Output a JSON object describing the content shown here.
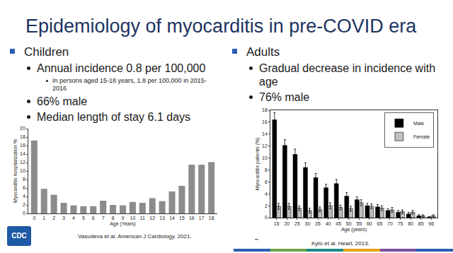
{
  "slide": {
    "title": "Epidemiology of myocarditis in pre-COVID era",
    "columns": [
      {
        "heading": "Children",
        "bullets": [
          {
            "text": "Annual incidence 0.8 per 100,000",
            "sub": [
              "In persons aged 15-18 years, 1.8 per 100,000 in 2015-2016"
            ]
          },
          {
            "text": "66% male"
          },
          {
            "text": "Median length of stay 6.1 days"
          }
        ]
      },
      {
        "heading": "Adults",
        "bullets": [
          {
            "text": "Gradual decrease in incidence with age"
          },
          {
            "text": "76% male"
          }
        ]
      }
    ],
    "citations": [
      "Vasudeva et al. American J Cardiology. 2021.",
      "Kyto et al. Heart. 2013."
    ],
    "logo": "CDC"
  },
  "chart_data": [
    {
      "type": "bar",
      "x_label": "Age (Years)",
      "y_label": "Myocarditis hospitalization %",
      "categories": [
        "0",
        "1",
        "2",
        "3",
        "4",
        "5",
        "6",
        "7",
        "8",
        "9",
        "10",
        "11",
        "12",
        "13",
        "14",
        "15",
        "16",
        "17",
        "18"
      ],
      "values": [
        17.2,
        5.8,
        4.4,
        2.5,
        1.9,
        1.7,
        1.7,
        3.0,
        2.0,
        1.9,
        2.7,
        2.5,
        3.6,
        2.9,
        5.2,
        6.5,
        11.5,
        11.5,
        12.1
      ],
      "color": "#8c8c8c",
      "ylim": [
        0,
        20
      ],
      "yticks": [
        0,
        2,
        4,
        6,
        8,
        10,
        12,
        14,
        16,
        18,
        20
      ],
      "grid": false
    },
    {
      "type": "bar",
      "x_label": "Age (years)",
      "y_label": "Myocarditis patients (%)",
      "annotations": [
        "B"
      ],
      "categories": [
        "15",
        "20",
        "25",
        "30",
        "35",
        "40",
        "45",
        "50",
        "55",
        "60",
        "65",
        "70",
        "75",
        "80",
        "85",
        "96"
      ],
      "series": [
        {
          "name": "Male",
          "color": "#000000",
          "values": [
            16.4,
            12.1,
            10.6,
            8.4,
            6.7,
            5.0,
            5.7,
            3.6,
            3.0,
            2.0,
            1.8,
            1.2,
            0.9,
            0.6,
            0.3,
            0.1
          ],
          "error": [
            1.2,
            1.0,
            0.9,
            0.8,
            0.7,
            0.6,
            0.7,
            0.6,
            0.5,
            0.4,
            0.4,
            0.3,
            0.3,
            0.3,
            0.2,
            0.1
          ]
        },
        {
          "name": "Female",
          "color": "#bfbfbf",
          "values": [
            1.9,
            1.9,
            1.6,
            1.2,
            1.4,
            2.0,
            1.7,
            1.5,
            2.5,
            1.9,
            1.6,
            1.3,
            1.0,
            0.9,
            0.3,
            0.3
          ],
          "error": [
            0.5,
            0.5,
            0.4,
            0.4,
            0.4,
            0.5,
            0.4,
            0.4,
            0.5,
            0.4,
            0.4,
            0.4,
            0.3,
            0.3,
            0.2,
            0.2
          ]
        }
      ],
      "ylim": [
        0,
        18
      ],
      "yticks": [
        0,
        2,
        4,
        6,
        8,
        10,
        12,
        14,
        16,
        18
      ],
      "grid": false,
      "legend": "upper right"
    }
  ]
}
